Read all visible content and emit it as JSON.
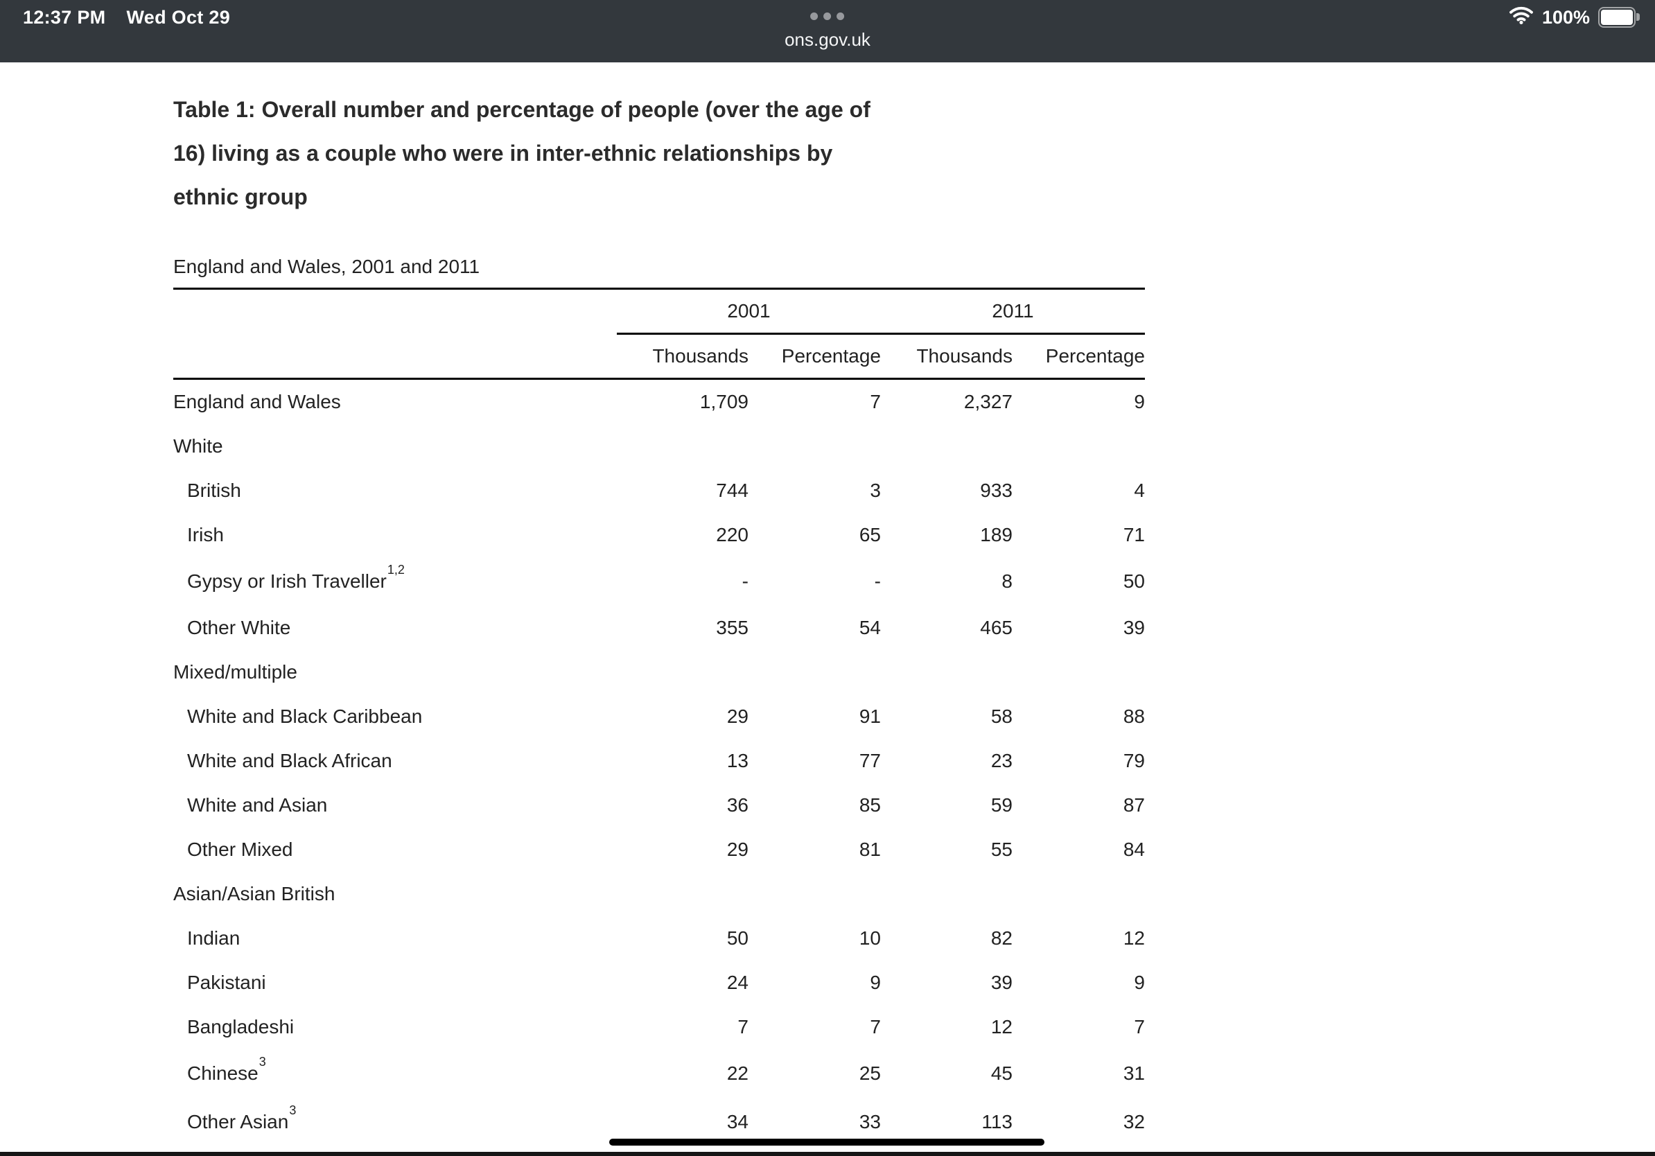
{
  "status_bar": {
    "time": "12:37 PM",
    "date": "Wed Oct 29",
    "url": "ons.gov.uk",
    "battery_percent": "100%",
    "icons": {
      "tab_dots": "•••",
      "wifi": "wifi-signal-full",
      "battery": "battery-full"
    }
  },
  "colors": {
    "header_bg": "#33383d",
    "header_text": "#ffffff",
    "tab_dots": "#97999d",
    "page_bg": "#ffffff",
    "text": "#222222",
    "rule": "#000000",
    "scrollbar_thumb": "#000000"
  },
  "page": {
    "title_lines": [
      "Table 1: Overall number and percentage of people (over the age of",
      "16) living as a couple who were in inter-ethnic relationships by",
      "ethnic group"
    ],
    "subtitle": "England and Wales, 2001 and 2011"
  },
  "table": {
    "year_groups": [
      "2001",
      "2011"
    ],
    "column_headers": [
      "Thousands",
      "Percentage",
      "Thousands",
      "Percentage"
    ],
    "rows": [
      {
        "label": "England and Wales",
        "sup": "",
        "indent": false,
        "values": [
          "1,709",
          "7",
          "2,327",
          "9"
        ]
      },
      {
        "label": "White",
        "sup": "",
        "indent": false,
        "values": [
          "",
          "",
          "",
          ""
        ]
      },
      {
        "label": "British",
        "sup": "",
        "indent": true,
        "values": [
          "744",
          "3",
          "933",
          "4"
        ]
      },
      {
        "label": "Irish",
        "sup": "",
        "indent": true,
        "values": [
          "220",
          "65",
          "189",
          "71"
        ]
      },
      {
        "label": "Gypsy or Irish Traveller",
        "sup": "1,2",
        "indent": true,
        "values": [
          "-",
          "-",
          "8",
          "50"
        ]
      },
      {
        "label": "Other White",
        "sup": "",
        "indent": true,
        "values": [
          "355",
          "54",
          "465",
          "39"
        ]
      },
      {
        "label": "Mixed/multiple",
        "sup": "",
        "indent": false,
        "values": [
          "",
          "",
          "",
          ""
        ]
      },
      {
        "label": "White and Black Caribbean",
        "sup": "",
        "indent": true,
        "values": [
          "29",
          "91",
          "58",
          "88"
        ]
      },
      {
        "label": "White and Black African",
        "sup": "",
        "indent": true,
        "values": [
          "13",
          "77",
          "23",
          "79"
        ]
      },
      {
        "label": "White and Asian",
        "sup": "",
        "indent": true,
        "values": [
          "36",
          "85",
          "59",
          "87"
        ]
      },
      {
        "label": "Other Mixed",
        "sup": "",
        "indent": true,
        "values": [
          "29",
          "81",
          "55",
          "84"
        ]
      },
      {
        "label": "Asian/Asian British",
        "sup": "",
        "indent": false,
        "values": [
          "",
          "",
          "",
          ""
        ]
      },
      {
        "label": "Indian",
        "sup": "",
        "indent": true,
        "values": [
          "50",
          "10",
          "82",
          "12"
        ]
      },
      {
        "label": "Pakistani",
        "sup": "",
        "indent": true,
        "values": [
          "24",
          "9",
          "39",
          "9"
        ]
      },
      {
        "label": "Bangladeshi",
        "sup": "",
        "indent": true,
        "values": [
          "7",
          "7",
          "12",
          "7"
        ]
      },
      {
        "label": "Chinese",
        "sup": "3",
        "indent": true,
        "values": [
          "22",
          "25",
          "45",
          "31"
        ]
      },
      {
        "label": "Other Asian",
        "sup": "3",
        "indent": true,
        "values": [
          "34",
          "33",
          "113",
          "32"
        ]
      }
    ]
  }
}
